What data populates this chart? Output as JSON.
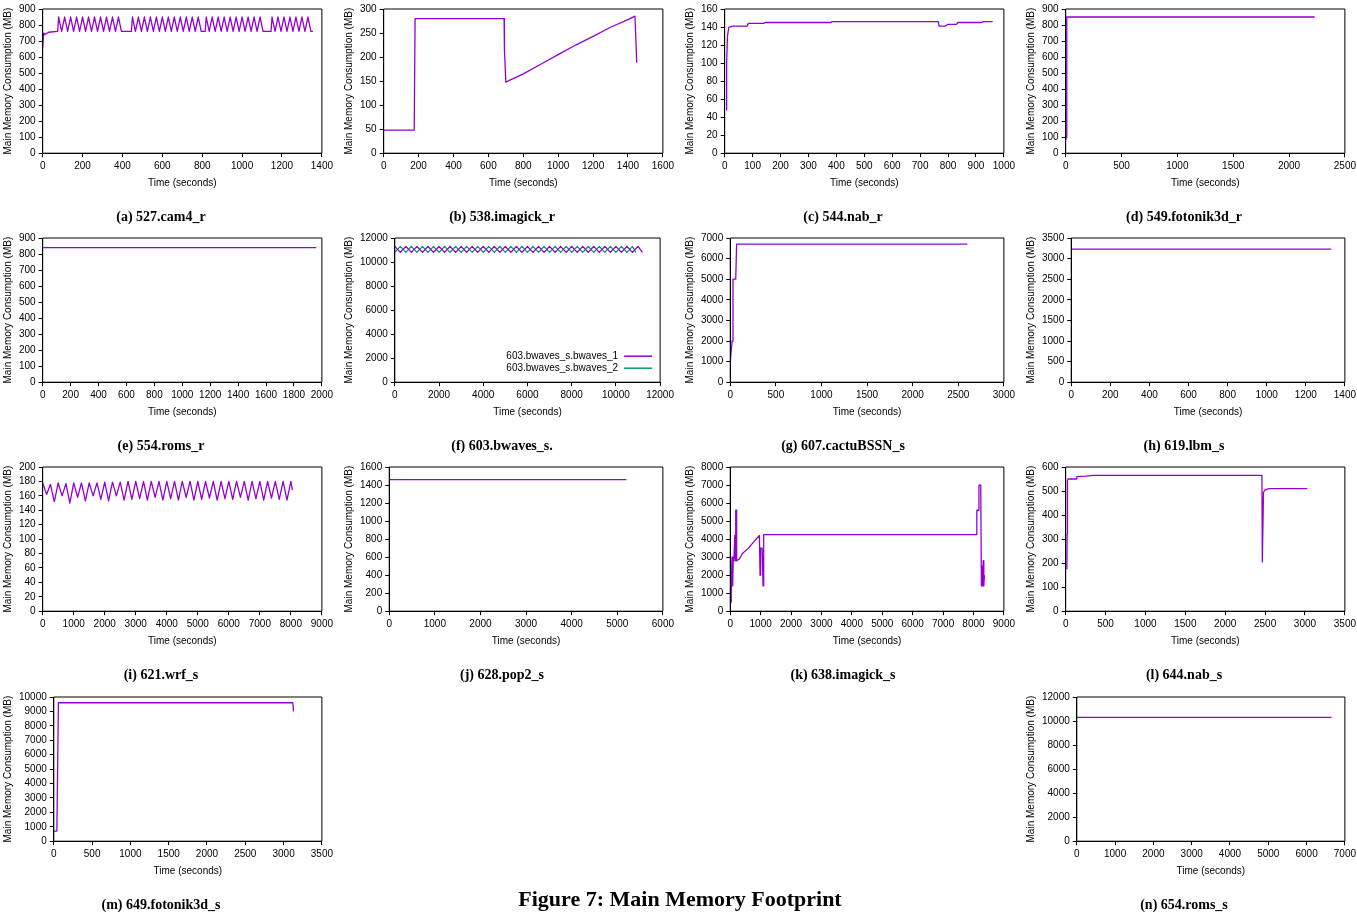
{
  "chart_data": [
    {
      "type": "line",
      "title": "(a) 527.cam4_r",
      "xlabel": "Time (seconds)",
      "ylabel": "Main Memory Consumption (MB)",
      "xlim": [
        0,
        1400
      ],
      "xticks": [
        0,
        200,
        400,
        600,
        800,
        1000,
        1200,
        1400
      ],
      "ylim": [
        0,
        900
      ],
      "yticks": [
        0,
        100,
        200,
        300,
        400,
        500,
        600,
        700,
        800,
        900
      ],
      "series": [
        {
          "color": "#9400d3",
          "x": [
            0,
            5,
            10,
            30,
            75,
            80,
            95,
            110,
            125,
            140,
            155,
            170,
            185,
            200,
            215,
            230,
            245,
            260,
            275,
            290,
            305,
            320,
            335,
            350,
            365,
            380,
            395,
            445,
            450,
            465,
            480,
            495,
            510,
            525,
            540,
            555,
            570,
            585,
            600,
            615,
            630,
            645,
            660,
            675,
            690,
            705,
            720,
            735,
            750,
            765,
            780,
            795,
            815,
            820,
            835,
            850,
            865,
            880,
            895,
            910,
            925,
            940,
            955,
            970,
            985,
            1000,
            1015,
            1030,
            1045,
            1060,
            1075,
            1090,
            1105,
            1145,
            1150,
            1165,
            1180,
            1195,
            1210,
            1225,
            1240,
            1255,
            1270,
            1285,
            1300,
            1315,
            1330,
            1345,
            1355
          ],
          "values": [
            660,
            750,
            740,
            755,
            760,
            850,
            760,
            850,
            760,
            850,
            760,
            850,
            760,
            850,
            760,
            850,
            760,
            850,
            760,
            850,
            760,
            850,
            760,
            850,
            760,
            850,
            760,
            760,
            850,
            760,
            850,
            760,
            850,
            760,
            850,
            760,
            850,
            760,
            850,
            760,
            850,
            760,
            850,
            760,
            850,
            760,
            850,
            760,
            850,
            760,
            850,
            760,
            760,
            850,
            760,
            850,
            760,
            850,
            760,
            850,
            760,
            850,
            760,
            850,
            760,
            850,
            760,
            850,
            760,
            850,
            760,
            850,
            760,
            760,
            850,
            760,
            850,
            760,
            850,
            760,
            850,
            760,
            850,
            760,
            850,
            760,
            850,
            760,
            760
          ]
        }
      ]
    },
    {
      "type": "line",
      "title": "(b) 538.imagick_r",
      "xlabel": "Time (seconds)",
      "ylabel": "Main Memory Consumption (MB)",
      "xlim": [
        0,
        1600
      ],
      "xticks": [
        0,
        200,
        400,
        600,
        800,
        1000,
        1200,
        1400,
        1600
      ],
      "ylim": [
        0,
        300
      ],
      "yticks": [
        0,
        50,
        100,
        150,
        200,
        250,
        300
      ],
      "series": [
        {
          "color": "#9400d3",
          "x": [
            0,
            175,
            180,
            690,
            692,
            700,
            800,
            900,
            1000,
            1100,
            1200,
            1300,
            1400,
            1440,
            1445,
            1450
          ],
          "values": [
            48,
            48,
            280,
            280,
            215,
            148,
            165,
            185,
            205,
            225,
            243,
            262,
            278,
            285,
            240,
            188
          ]
        }
      ]
    },
    {
      "type": "line",
      "title": "(c) 544.nab_r",
      "xlabel": "Time (seconds)",
      "ylabel": "Main Memory Consumption (MB)",
      "xlim": [
        0,
        1000
      ],
      "xticks": [
        0,
        100,
        200,
        300,
        400,
        500,
        600,
        700,
        800,
        900,
        1000
      ],
      "ylim": [
        0,
        160
      ],
      "yticks": [
        0,
        20,
        40,
        60,
        80,
        100,
        120,
        140,
        160
      ],
      "series": [
        {
          "color": "#9400d3",
          "x": [
            5,
            7,
            10,
            15,
            30,
            80,
            85,
            140,
            145,
            380,
            385,
            765,
            768,
            790,
            800,
            830,
            835,
            920,
            925,
            960
          ],
          "values": [
            48,
            100,
            130,
            140,
            141,
            141,
            144,
            144,
            145,
            145,
            146,
            146,
            141,
            141,
            143,
            143,
            145,
            145,
            146,
            146
          ]
        }
      ]
    },
    {
      "type": "line",
      "title": "(d) 549.fotonik3d_r",
      "xlabel": "Time (seconds)",
      "ylabel": "Main Memory Consumption (MB)",
      "xlim": [
        0,
        2500
      ],
      "xticks": [
        0,
        500,
        1000,
        1500,
        2000,
        2500
      ],
      "ylim": [
        0,
        900
      ],
      "yticks": [
        0,
        100,
        200,
        300,
        400,
        500,
        600,
        700,
        800,
        900
      ],
      "series": [
        {
          "color": "#9400d3",
          "x": [
            0,
            5,
            10,
            2230
          ],
          "values": [
            80,
            100,
            850,
            850
          ]
        }
      ]
    },
    {
      "type": "line",
      "title": "(e) 554.roms_r",
      "xlabel": "Time (seconds)",
      "ylabel": "Main Memory Consumption (MB)",
      "xlim": [
        0,
        2000
      ],
      "xticks": [
        0,
        200,
        400,
        600,
        800,
        1000,
        1200,
        1400,
        1600,
        1800,
        2000
      ],
      "ylim": [
        0,
        900
      ],
      "yticks": [
        0,
        100,
        200,
        300,
        400,
        500,
        600,
        700,
        800,
        900
      ],
      "series": [
        {
          "color": "#9400d3",
          "x": [
            0,
            1960
          ],
          "values": [
            840,
            840
          ]
        }
      ]
    },
    {
      "type": "line",
      "title": "(f) 603.bwaves_s.",
      "xlabel": "Time (seconds)",
      "ylabel": "Main Memory Consumption (MB)",
      "xlim": [
        0,
        12000
      ],
      "xticks": [
        0,
        2000,
        4000,
        6000,
        8000,
        10000,
        12000
      ],
      "ylim": [
        0,
        12000
      ],
      "yticks": [
        0,
        2000,
        4000,
        6000,
        8000,
        10000,
        12000
      ],
      "legend": "bottom right",
      "series": [
        {
          "name": "603.bwaves_s.bwaves_1",
          "color": "#9400d3",
          "x": [
            0,
            250,
            500,
            750,
            1000,
            1250,
            1500,
            1750,
            2000,
            2250,
            2500,
            2750,
            3000,
            3250,
            3500,
            3750,
            4000,
            4250,
            4500,
            4750,
            5000,
            5250,
            5500,
            5750,
            6000,
            6250,
            6500,
            6750,
            7000,
            7250,
            7500,
            7750,
            8000,
            8250,
            8500,
            8750,
            9000,
            9250,
            9500,
            9750,
            10000,
            10250,
            10500,
            10750,
            11000,
            11200
          ],
          "values": [
            11300,
            10800,
            11300,
            10800,
            11300,
            10800,
            11300,
            10800,
            11300,
            10800,
            11300,
            10800,
            11300,
            10800,
            11300,
            10800,
            11300,
            10800,
            11300,
            10800,
            11300,
            10800,
            11300,
            10800,
            11300,
            10800,
            11300,
            10800,
            11300,
            10800,
            11300,
            10800,
            11300,
            10800,
            11300,
            10800,
            11300,
            10800,
            11300,
            10800,
            11300,
            10800,
            11300,
            10800,
            11300,
            10800
          ]
        },
        {
          "name": "603.bwaves_s.bwaves_2",
          "color": "#009e73",
          "x": [
            0,
            250,
            500,
            750,
            1000,
            1250,
            1500,
            1750,
            2000,
            2250,
            2500,
            2750,
            3000,
            3250,
            3500,
            3750,
            4000,
            4250,
            4500,
            4750,
            5000,
            5250,
            5500,
            5750,
            6000,
            6250,
            6500,
            6750,
            7000,
            7250,
            7500,
            7750,
            8000,
            8250,
            8500,
            8750,
            9000,
            9250,
            9500,
            9750,
            10000,
            10250,
            10500,
            10750,
            10900
          ],
          "values": [
            10800,
            11300,
            10800,
            11300,
            10800,
            11300,
            10800,
            11300,
            10800,
            11300,
            10800,
            11300,
            10800,
            11300,
            10800,
            11300,
            10800,
            11300,
            10800,
            11300,
            10800,
            11300,
            10800,
            11300,
            10800,
            11300,
            10800,
            11300,
            10800,
            11300,
            10800,
            11300,
            10800,
            11300,
            10800,
            11300,
            10800,
            11300,
            10800,
            11300,
            10800,
            11300,
            10800,
            11300,
            10800
          ]
        }
      ]
    },
    {
      "type": "line",
      "title": "(g) 607.cactuBSSN_s",
      "xlabel": "Time (seconds)",
      "ylabel": "Main Memory Consumption (MB)",
      "xlim": [
        0,
        3000
      ],
      "xticks": [
        0,
        500,
        1000,
        1500,
        2000,
        2500,
        3000
      ],
      "ylim": [
        0,
        7000
      ],
      "yticks": [
        0,
        1000,
        2000,
        3000,
        4000,
        5000,
        6000,
        7000
      ],
      "series": [
        {
          "color": "#9400d3",
          "x": [
            0,
            20,
            30,
            60,
            70,
            2600
          ],
          "values": [
            950,
            2000,
            5000,
            5000,
            6700,
            6700
          ]
        }
      ]
    },
    {
      "type": "line",
      "title": "(h) 619.lbm_s",
      "xlabel": "Time (seconds)",
      "ylabel": "Main Memory Consumption (MB)",
      "xlim": [
        0,
        1400
      ],
      "xticks": [
        0,
        200,
        400,
        600,
        800,
        1000,
        1200,
        1400
      ],
      "ylim": [
        0,
        3500
      ],
      "yticks": [
        0,
        500,
        1000,
        1500,
        2000,
        2500,
        3000,
        3500
      ],
      "series": [
        {
          "color": "#9400d3",
          "x": [
            0,
            1330
          ],
          "values": [
            3230,
            3230
          ]
        }
      ]
    },
    {
      "type": "line",
      "title": "(i) 621.wrf_s",
      "xlabel": "Time (seconds)",
      "ylabel": "Main Memory Consumption (MB)",
      "xlim": [
        0,
        9000
      ],
      "xticks": [
        0,
        1000,
        2000,
        3000,
        4000,
        5000,
        6000,
        7000,
        8000,
        9000
      ],
      "ylim": [
        0,
        200
      ],
      "yticks": [
        0,
        20,
        40,
        60,
        80,
        100,
        120,
        140,
        160,
        180,
        200
      ],
      "series": [
        {
          "color": "#9400d3",
          "x": [
            0,
            125,
            250,
            375,
            500,
            625,
            750,
            875,
            1000,
            1125,
            1250,
            1375,
            1500,
            1625,
            1750,
            1875,
            2000,
            2125,
            2250,
            2375,
            2500,
            2625,
            2750,
            2875,
            3000,
            3125,
            3250,
            3375,
            3500,
            3625,
            3750,
            3875,
            4000,
            4125,
            4250,
            4375,
            4500,
            4625,
            4750,
            4875,
            5000,
            5125,
            5250,
            5375,
            5500,
            5625,
            5750,
            5875,
            6000,
            6125,
            6250,
            6375,
            6500,
            6625,
            6750,
            6875,
            7000,
            7125,
            7250,
            7375,
            7500,
            7625,
            7750,
            7875,
            8000,
            8050
          ],
          "values": [
            178,
            162,
            176,
            152,
            178,
            160,
            177,
            150,
            178,
            158,
            178,
            153,
            178,
            160,
            178,
            155,
            179,
            153,
            179,
            160,
            179,
            154,
            180,
            155,
            180,
            156,
            180,
            154,
            180,
            158,
            180,
            154,
            180,
            156,
            180,
            154,
            180,
            158,
            180,
            154,
            180,
            155,
            180,
            157,
            180,
            154,
            180,
            156,
            180,
            155,
            180,
            158,
            180,
            154,
            180,
            156,
            180,
            154,
            180,
            157,
            180,
            155,
            180,
            154,
            180,
            168
          ]
        }
      ]
    },
    {
      "type": "line",
      "title": "(j) 628.pop2_s",
      "xlabel": "Time (seconds)",
      "ylabel": "Main Memory Consumption (MB)",
      "xlim": [
        0,
        6000
      ],
      "xticks": [
        0,
        1000,
        2000,
        3000,
        4000,
        5000,
        6000
      ],
      "ylim": [
        0,
        1600
      ],
      "yticks": [
        0,
        200,
        400,
        600,
        800,
        1000,
        1200,
        1400,
        1600
      ],
      "series": [
        {
          "color": "#9400d3",
          "x": [
            0,
            5200
          ],
          "values": [
            1460,
            1460
          ]
        }
      ]
    },
    {
      "type": "line",
      "title": "(k) 638.imagick_s",
      "xlabel": "Time (seconds)",
      "ylabel": "Main Memory Consumption (MB)",
      "xlim": [
        0,
        9000
      ],
      "xticks": [
        0,
        1000,
        2000,
        3000,
        4000,
        5000,
        6000,
        7000,
        8000,
        9000
      ],
      "ylim": [
        0,
        8000
      ],
      "yticks": [
        0,
        1000,
        2000,
        3000,
        4000,
        5000,
        6000,
        7000,
        8000
      ],
      "series": [
        {
          "color": "#9400d3",
          "x": [
            25,
            30,
            40,
            60,
            80,
            100,
            120,
            150,
            170,
            180,
            200,
            210,
            300,
            400,
            600,
            800,
            960,
            980,
            1000,
            1050,
            1080,
            1100,
            8100,
            8110,
            8170,
            8180,
            8240,
            8260,
            8280,
            8300,
            8320,
            8340,
            8360
          ],
          "values": [
            500,
            1700,
            1700,
            3000,
            1400,
            3000,
            2800,
            4200,
            2800,
            5600,
            5600,
            2800,
            2900,
            3200,
            3500,
            3900,
            4200,
            2000,
            3500,
            3500,
            1400,
            4250,
            4250,
            5600,
            5600,
            7000,
            7000,
            1400,
            2500,
            1400,
            2800,
            1400,
            2000
          ]
        }
      ]
    },
    {
      "type": "line",
      "title": "(l) 644.nab_s",
      "xlabel": "Time (seconds)",
      "ylabel": "Main Memory Consumption (MB)",
      "xlim": [
        0,
        3500
      ],
      "xticks": [
        0,
        500,
        1000,
        1500,
        2000,
        2500,
        3000,
        3500
      ],
      "ylim": [
        0,
        600
      ],
      "yticks": [
        0,
        100,
        200,
        300,
        400,
        500,
        600
      ],
      "series": [
        {
          "color": "#9400d3",
          "x": [
            15,
            18,
            22,
            30,
            130,
            140,
            250,
            350,
            2460,
            2465,
            2480,
            2500,
            2550,
            3030
          ],
          "values": [
            175,
            320,
            545,
            550,
            550,
            560,
            562,
            565,
            565,
            205,
            495,
            505,
            510,
            510
          ]
        }
      ]
    },
    {
      "type": "line",
      "title": "(m) 649.fotonik3d_s",
      "xlabel": "Time (seconds)",
      "ylabel": "Main Memory Consumption (MB)",
      "xlim": [
        0,
        3500
      ],
      "xticks": [
        0,
        500,
        1000,
        1500,
        2000,
        2500,
        3000,
        3500
      ],
      "ylim": [
        0,
        10000
      ],
      "yticks": [
        0,
        1000,
        2000,
        3000,
        4000,
        5000,
        6000,
        7000,
        8000,
        9000,
        10000
      ],
      "series": [
        {
          "color": "#9400d3",
          "x": [
            0,
            40,
            60,
            3120,
            3130
          ],
          "values": [
            700,
            700,
            9600,
            9600,
            9000
          ]
        }
      ]
    },
    {
      "type": "line",
      "title": "(n) 654.roms_s",
      "xlabel": "Time (seconds)",
      "ylabel": "Main Memory Consumption (MB)",
      "xlim": [
        0,
        7000
      ],
      "xticks": [
        0,
        1000,
        2000,
        3000,
        4000,
        5000,
        6000,
        7000
      ],
      "ylim": [
        0,
        12000
      ],
      "yticks": [
        0,
        2000,
        4000,
        6000,
        8000,
        10000,
        12000
      ],
      "series": [
        {
          "color": "#9400d3",
          "x": [
            0,
            6650
          ],
          "values": [
            10300,
            10300
          ]
        }
      ]
    },
    {
      "type": "other",
      "title": "Figure 7: Main Memory Footprint"
    }
  ]
}
